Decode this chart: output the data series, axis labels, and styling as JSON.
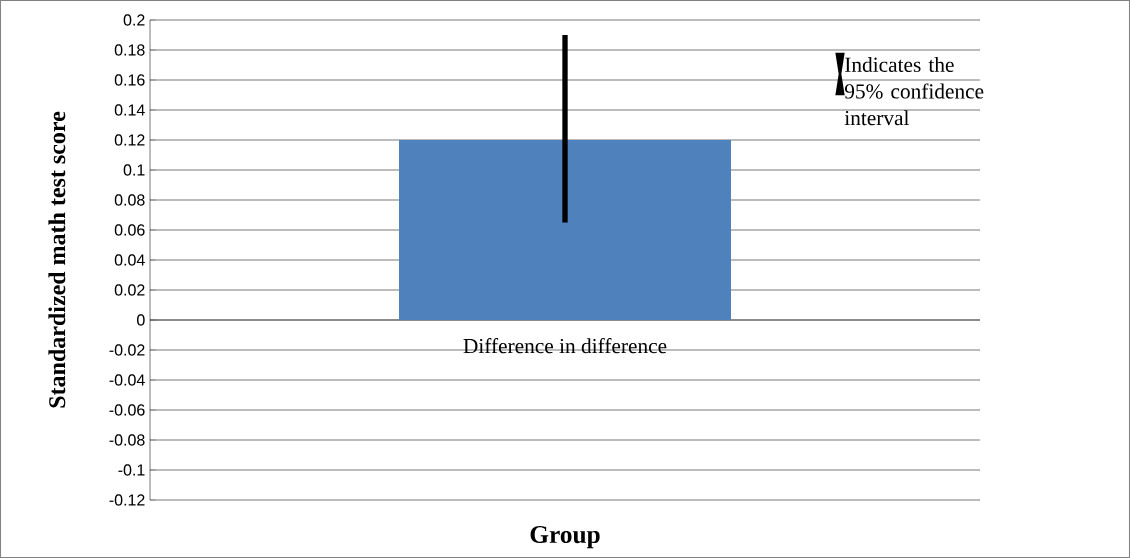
{
  "chart_data": {
    "type": "bar",
    "categories": [
      "Difference in difference"
    ],
    "values": [
      0.12
    ],
    "errors": [
      [
        0.065,
        0.19
      ]
    ],
    "color": "#4f81bd",
    "xlabel": "Group",
    "ylabel": "Standardized math test score",
    "ylim": [
      -0.12,
      0.2
    ],
    "yticks": [
      -0.12,
      -0.1,
      -0.08,
      -0.06,
      -0.04,
      -0.02,
      0,
      0.02,
      0.04,
      0.06,
      0.08,
      0.1,
      0.12,
      0.14,
      0.16,
      0.18,
      0.2
    ],
    "grid": "y",
    "annotations": [
      "Indicates the 95% confidence interval"
    ]
  }
}
